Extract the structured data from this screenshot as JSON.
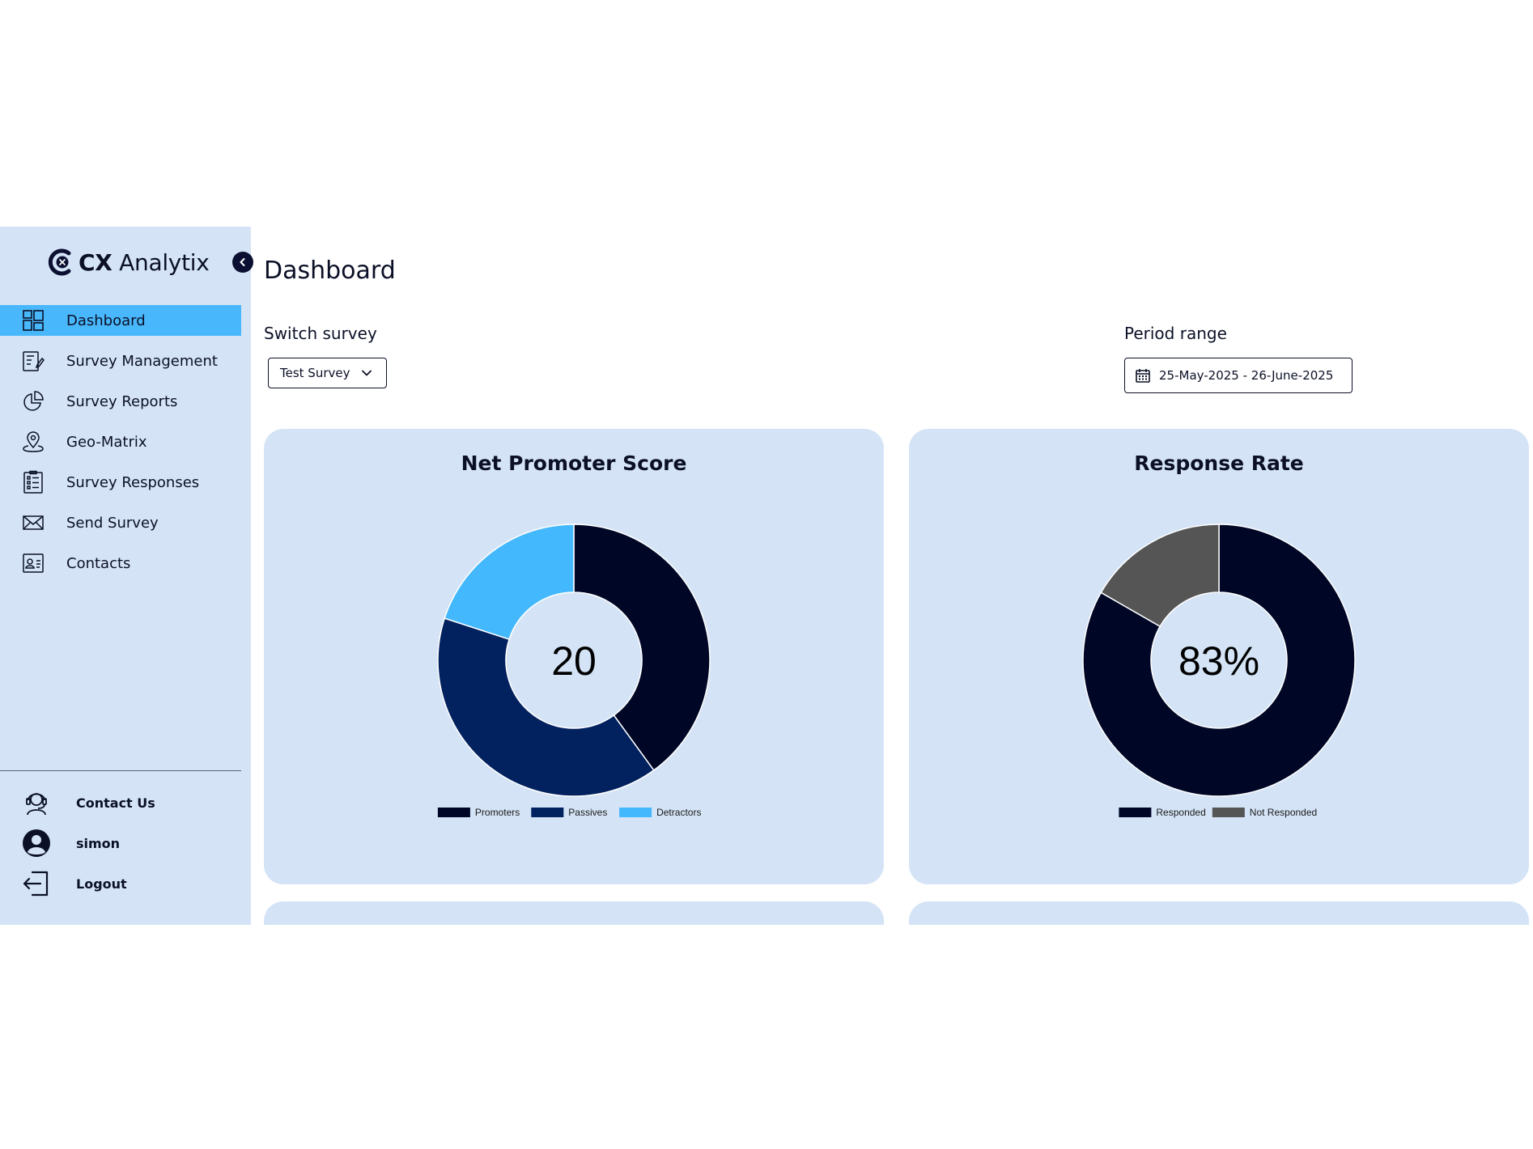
{
  "app": {
    "logo_text_bold": "CX",
    "logo_text_light": "Analytix"
  },
  "sidebar": {
    "items": [
      {
        "label": "Dashboard",
        "icon": "dashboard-icon",
        "active": true
      },
      {
        "label": "Survey Management",
        "icon": "survey-management-icon",
        "active": false
      },
      {
        "label": "Survey Reports",
        "icon": "pie-chart-icon",
        "active": false
      },
      {
        "label": "Geo-Matrix",
        "icon": "map-pin-icon",
        "active": false
      },
      {
        "label": "Survey Responses",
        "icon": "checklist-icon",
        "active": false
      },
      {
        "label": "Send Survey",
        "icon": "envelope-icon",
        "active": false
      },
      {
        "label": "Contacts",
        "icon": "contact-card-icon",
        "active": false
      }
    ],
    "bottom": {
      "contact_us": "Contact Us",
      "user": "simon",
      "logout": "Logout"
    }
  },
  "header": {
    "title": "Dashboard"
  },
  "filters": {
    "switch_survey_label": "Switch survey",
    "survey_selected": "Test Survey",
    "period_label": "Period range",
    "period_value": "25-May-2025 - 26-June-2025"
  },
  "colors": {
    "accent": "#48b7fb",
    "sidebar_bg": "#d4e4f6",
    "navy": "#000626",
    "dark_blue": "#02215f",
    "light_blue": "#44b8fc",
    "gray": "#555555"
  },
  "chart_data": [
    {
      "type": "pie",
      "title": "Net Promoter Score",
      "center_label": "20",
      "categories": [
        "Promoters",
        "Passives",
        "Detractors"
      ],
      "values": [
        40,
        40,
        20
      ],
      "colors": [
        "#000626",
        "#02215f",
        "#44b8fc"
      ]
    },
    {
      "type": "pie",
      "title": "Response Rate",
      "center_label": "83%",
      "categories": [
        "Responded",
        "Not Responded"
      ],
      "values": [
        83.3,
        16.7
      ],
      "colors": [
        "#000626",
        "#555555"
      ]
    }
  ]
}
